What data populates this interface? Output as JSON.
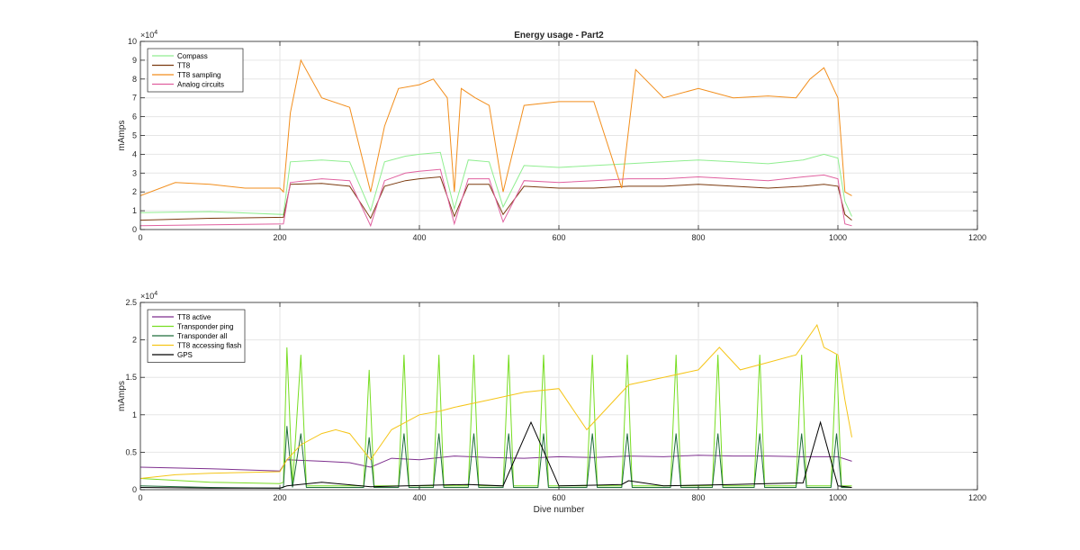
{
  "chart_data": [
    {
      "type": "line",
      "title": "Energy usage - Part2",
      "ylabel": "mAmps",
      "xlabel": "",
      "xlim": [
        0,
        1200
      ],
      "ylim": [
        0,
        100000
      ],
      "y_exponent_label": "×10",
      "y_exponent_power": "4",
      "x_ticks": [
        0,
        200,
        400,
        600,
        800,
        1000,
        1200
      ],
      "x_tick_labels": [
        "0",
        "200",
        "400",
        "600",
        "800",
        "1000",
        "1200"
      ],
      "y_ticks": [
        0,
        10000,
        20000,
        30000,
        40000,
        50000,
        60000,
        70000,
        80000,
        90000,
        100000
      ],
      "y_tick_labels": [
        "0",
        "1",
        "2",
        "3",
        "4",
        "5",
        "6",
        "7",
        "8",
        "9",
        "10"
      ],
      "grid": true,
      "legend_position": "top-left",
      "series": [
        {
          "name": "Compass",
          "color": "#90ee90",
          "x": [
            0,
            100,
            205,
            215,
            260,
            300,
            330,
            350,
            380,
            400,
            430,
            450,
            470,
            500,
            520,
            550,
            600,
            650,
            700,
            750,
            800,
            850,
            900,
            950,
            980,
            1000,
            1010,
            1020
          ],
          "y": [
            9000,
            9500,
            8000,
            36000,
            37000,
            36000,
            10000,
            36000,
            39000,
            40000,
            41000,
            11000,
            37000,
            36000,
            12000,
            34000,
            33000,
            34000,
            35000,
            36000,
            37000,
            36000,
            35000,
            37000,
            40000,
            38000,
            15000,
            7000
          ]
        },
        {
          "name": "TT8",
          "color": "#7b3a0f",
          "x": [
            0,
            100,
            205,
            215,
            260,
            300,
            330,
            350,
            380,
            400,
            430,
            450,
            470,
            500,
            520,
            550,
            600,
            650,
            700,
            750,
            800,
            850,
            900,
            950,
            980,
            1000,
            1010,
            1020
          ],
          "y": [
            5000,
            6000,
            6500,
            24000,
            24500,
            23000,
            6000,
            23000,
            26000,
            27000,
            28000,
            7000,
            24000,
            24000,
            8000,
            23000,
            22000,
            22000,
            23000,
            23000,
            24000,
            23000,
            22000,
            23000,
            24000,
            23000,
            8000,
            5000
          ]
        },
        {
          "name": "TT8 sampling",
          "color": "#f28e1c",
          "x": [
            0,
            50,
            100,
            150,
            200,
            205,
            215,
            230,
            260,
            300,
            330,
            350,
            370,
            400,
            420,
            440,
            450,
            460,
            480,
            500,
            520,
            550,
            600,
            650,
            690,
            710,
            750,
            800,
            850,
            900,
            940,
            960,
            980,
            1000,
            1010,
            1020
          ],
          "y": [
            18000,
            25000,
            24000,
            22000,
            22000,
            20000,
            62000,
            90000,
            70000,
            65000,
            20000,
            55000,
            75000,
            77000,
            80000,
            70000,
            20000,
            75000,
            70000,
            66000,
            20000,
            66000,
            68000,
            68000,
            22000,
            85000,
            70000,
            75000,
            70000,
            71000,
            70000,
            80000,
            86000,
            70000,
            20000,
            18000
          ]
        },
        {
          "name": "Analog circuits",
          "color": "#e0609f",
          "x": [
            0,
            100,
            205,
            215,
            260,
            300,
            330,
            350,
            380,
            400,
            430,
            450,
            470,
            500,
            520,
            550,
            600,
            650,
            700,
            750,
            800,
            850,
            900,
            950,
            980,
            1000,
            1010,
            1020
          ],
          "y": [
            2000,
            2500,
            3000,
            25000,
            27000,
            26000,
            2000,
            26000,
            30000,
            31000,
            32000,
            3000,
            27000,
            27000,
            4000,
            26000,
            25000,
            26000,
            27000,
            27000,
            28000,
            27000,
            26000,
            28000,
            29000,
            27000,
            3000,
            2000
          ]
        }
      ]
    },
    {
      "type": "line",
      "title": "",
      "ylabel": "mAmps",
      "xlabel": "Dive number",
      "xlim": [
        0,
        1200
      ],
      "ylim": [
        0,
        25000
      ],
      "y_exponent_label": "×10",
      "y_exponent_power": "4",
      "x_ticks": [
        0,
        200,
        400,
        600,
        800,
        1000,
        1200
      ],
      "x_tick_labels": [
        "0",
        "200",
        "400",
        "600",
        "800",
        "1000",
        "1200"
      ],
      "y_ticks": [
        0,
        5000,
        10000,
        15000,
        20000,
        25000
      ],
      "y_tick_labels": [
        "0",
        "0.5",
        "1",
        "1.5",
        "2",
        "2.5"
      ],
      "grid": true,
      "legend_position": "top-left",
      "series": [
        {
          "name": "TT8 active",
          "color": "#7e2f8e",
          "x": [
            0,
            100,
            200,
            210,
            260,
            300,
            330,
            360,
            400,
            450,
            500,
            550,
            600,
            650,
            700,
            750,
            800,
            850,
            900,
            950,
            1000,
            1020
          ],
          "y": [
            3000,
            2800,
            2500,
            4000,
            3800,
            3600,
            3000,
            4200,
            4000,
            4500,
            4300,
            4200,
            4400,
            4300,
            4500,
            4400,
            4600,
            4500,
            4500,
            4400,
            4400,
            3800
          ]
        },
        {
          "name": "Transponder ping",
          "color": "#77dd22",
          "x": [
            0,
            100,
            200,
            205,
            210,
            218,
            230,
            238,
            245,
            320,
            328,
            335,
            370,
            378,
            385,
            420,
            428,
            435,
            470,
            478,
            485,
            520,
            528,
            535,
            570,
            578,
            585,
            640,
            648,
            655,
            690,
            698,
            705,
            760,
            768,
            775,
            820,
            828,
            835,
            880,
            888,
            895,
            940,
            948,
            955,
            990,
            998,
            1005,
            1020
          ],
          "y": [
            1500,
            1000,
            800,
            1000,
            19000,
            500,
            18000,
            500,
            500,
            500,
            16000,
            500,
            500,
            18000,
            500,
            500,
            18000,
            500,
            500,
            18000,
            500,
            500,
            18000,
            500,
            500,
            18000,
            500,
            500,
            18000,
            500,
            500,
            18000,
            500,
            500,
            18000,
            500,
            500,
            18000,
            500,
            500,
            18000,
            500,
            500,
            18000,
            500,
            500,
            18000,
            500,
            500
          ]
        },
        {
          "name": "Transponder all",
          "color": "#1e6e3a",
          "x": [
            0,
            100,
            200,
            205,
            210,
            218,
            230,
            238,
            245,
            320,
            328,
            335,
            370,
            378,
            385,
            420,
            428,
            435,
            470,
            478,
            485,
            520,
            528,
            535,
            570,
            578,
            585,
            640,
            648,
            655,
            690,
            698,
            705,
            760,
            768,
            775,
            820,
            828,
            835,
            880,
            888,
            895,
            940,
            948,
            955,
            990,
            998,
            1005,
            1020
          ],
          "y": [
            500,
            300,
            200,
            300,
            8500,
            300,
            7500,
            300,
            300,
            300,
            7000,
            300,
            300,
            7500,
            300,
            300,
            7500,
            300,
            300,
            7500,
            300,
            300,
            7500,
            300,
            300,
            7500,
            300,
            300,
            7500,
            300,
            300,
            7500,
            300,
            300,
            7500,
            300,
            300,
            7500,
            300,
            300,
            7500,
            300,
            300,
            7500,
            300,
            300,
            7500,
            300,
            300
          ]
        },
        {
          "name": "TT8 accessing flash",
          "color": "#f5c518",
          "x": [
            0,
            50,
            100,
            150,
            200,
            210,
            230,
            260,
            280,
            300,
            330,
            360,
            400,
            430,
            450,
            500,
            550,
            600,
            640,
            700,
            750,
            800,
            830,
            860,
            900,
            940,
            970,
            980,
            1000,
            1010,
            1020
          ],
          "y": [
            1500,
            2000,
            2200,
            2300,
            2400,
            4000,
            6000,
            7500,
            8000,
            7500,
            4000,
            8000,
            10000,
            10500,
            11000,
            12000,
            13000,
            13500,
            8000,
            14000,
            15000,
            16000,
            19000,
            16000,
            17000,
            18000,
            22000,
            19000,
            18000,
            12000,
            7000
          ]
        },
        {
          "name": "GPS",
          "color": "#000000",
          "x": [
            0,
            100,
            200,
            210,
            260,
            330,
            380,
            420,
            470,
            520,
            560,
            600,
            650,
            690,
            700,
            750,
            800,
            850,
            900,
            950,
            975,
            1000,
            1020
          ],
          "y": [
            300,
            200,
            200,
            500,
            1000,
            400,
            500,
            600,
            700,
            500,
            9000,
            500,
            600,
            700,
            1200,
            500,
            600,
            700,
            800,
            900,
            9000,
            500,
            300
          ]
        }
      ]
    }
  ]
}
